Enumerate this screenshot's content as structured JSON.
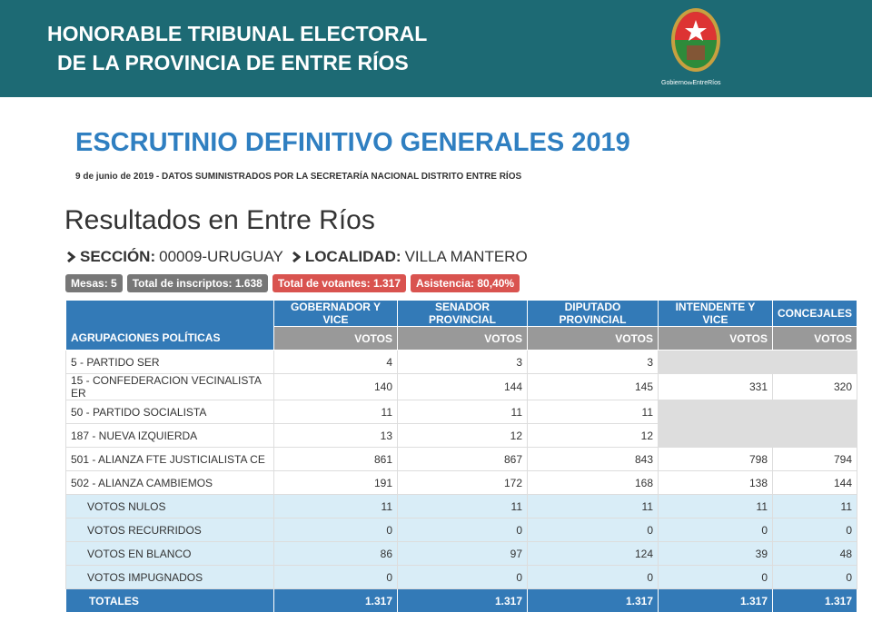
{
  "header": {
    "title_lines": [
      "HONORABLE TRIBUNAL ELECTORAL",
      "DE LA PROVINCIA DE ENTRE RÍOS"
    ],
    "logo_caption": [
      "Gobierno",
      "de",
      "EntreRíos"
    ]
  },
  "title": "ESCRUTINIO DEFINITIVO GENERALES 2019",
  "subtitle": "9 de junio de 2019 - DATOS SUMINISTRADOS POR LA SECRETARÍA NACIONAL DISTRITO ENTRE RÍOS",
  "heading": "Resultados en Entre Ríos",
  "location": {
    "section_label": "SECCIÓN:",
    "section": "00009-URUGUAY",
    "locality_label": "LOCALIDAD:",
    "locality": "VILLA MANTERO"
  },
  "badges": [
    "Mesas: 5",
    "Total de inscriptos: 1.638",
    "Total de votantes: 1.317",
    "Asistencia: 80,40%"
  ],
  "table": {
    "first_header": "AGRUPACIONES POLÍTICAS",
    "columns": [
      "GOBERNADOR Y VICE",
      "SENADOR PROVINCIAL",
      "DIPUTADO PROVINCIAL",
      "INTENDENTE Y VICE",
      "CONCEJALES"
    ],
    "subheaders": [
      "VOTOS",
      "VOTOS",
      "VOTOS",
      "VOTOS",
      "VOTOS"
    ],
    "party_rows": [
      {
        "name": "5 - PARTIDO SER",
        "values": [
          "4",
          "3",
          "3",
          null,
          null
        ]
      },
      {
        "name": "15 - CONFEDERACION VECINALISTA ER",
        "values": [
          "140",
          "144",
          "145",
          "331",
          "320"
        ]
      },
      {
        "name": "50 - PARTIDO SOCIALISTA",
        "values": [
          "11",
          "11",
          "11",
          null,
          null
        ]
      },
      {
        "name": "187 - NUEVA IZQUIERDA",
        "values": [
          "13",
          "12",
          "12",
          null,
          null
        ]
      },
      {
        "name": "501 - ALIANZA FTE JUSTICIALISTA CE",
        "values": [
          "861",
          "867",
          "843",
          "798",
          "794"
        ]
      },
      {
        "name": "502 - ALIANZA CAMBIEMOS",
        "values": [
          "191",
          "172",
          "168",
          "138",
          "144"
        ]
      }
    ],
    "summary_rows": [
      {
        "name": "VOTOS NULOS",
        "values": [
          "11",
          "11",
          "11",
          "11",
          "11"
        ]
      },
      {
        "name": "VOTOS RECURRIDOS",
        "values": [
          "0",
          "0",
          "0",
          "0",
          "0"
        ]
      },
      {
        "name": "VOTOS EN BLANCO",
        "values": [
          "86",
          "97",
          "124",
          "39",
          "48"
        ]
      },
      {
        "name": "VOTOS IMPUGNADOS",
        "values": [
          "0",
          "0",
          "0",
          "0",
          "0"
        ]
      }
    ],
    "totals": {
      "name": "TOTALES",
      "values": [
        "1.317",
        "1.317",
        "1.317",
        "1.317",
        "1.317"
      ]
    }
  }
}
